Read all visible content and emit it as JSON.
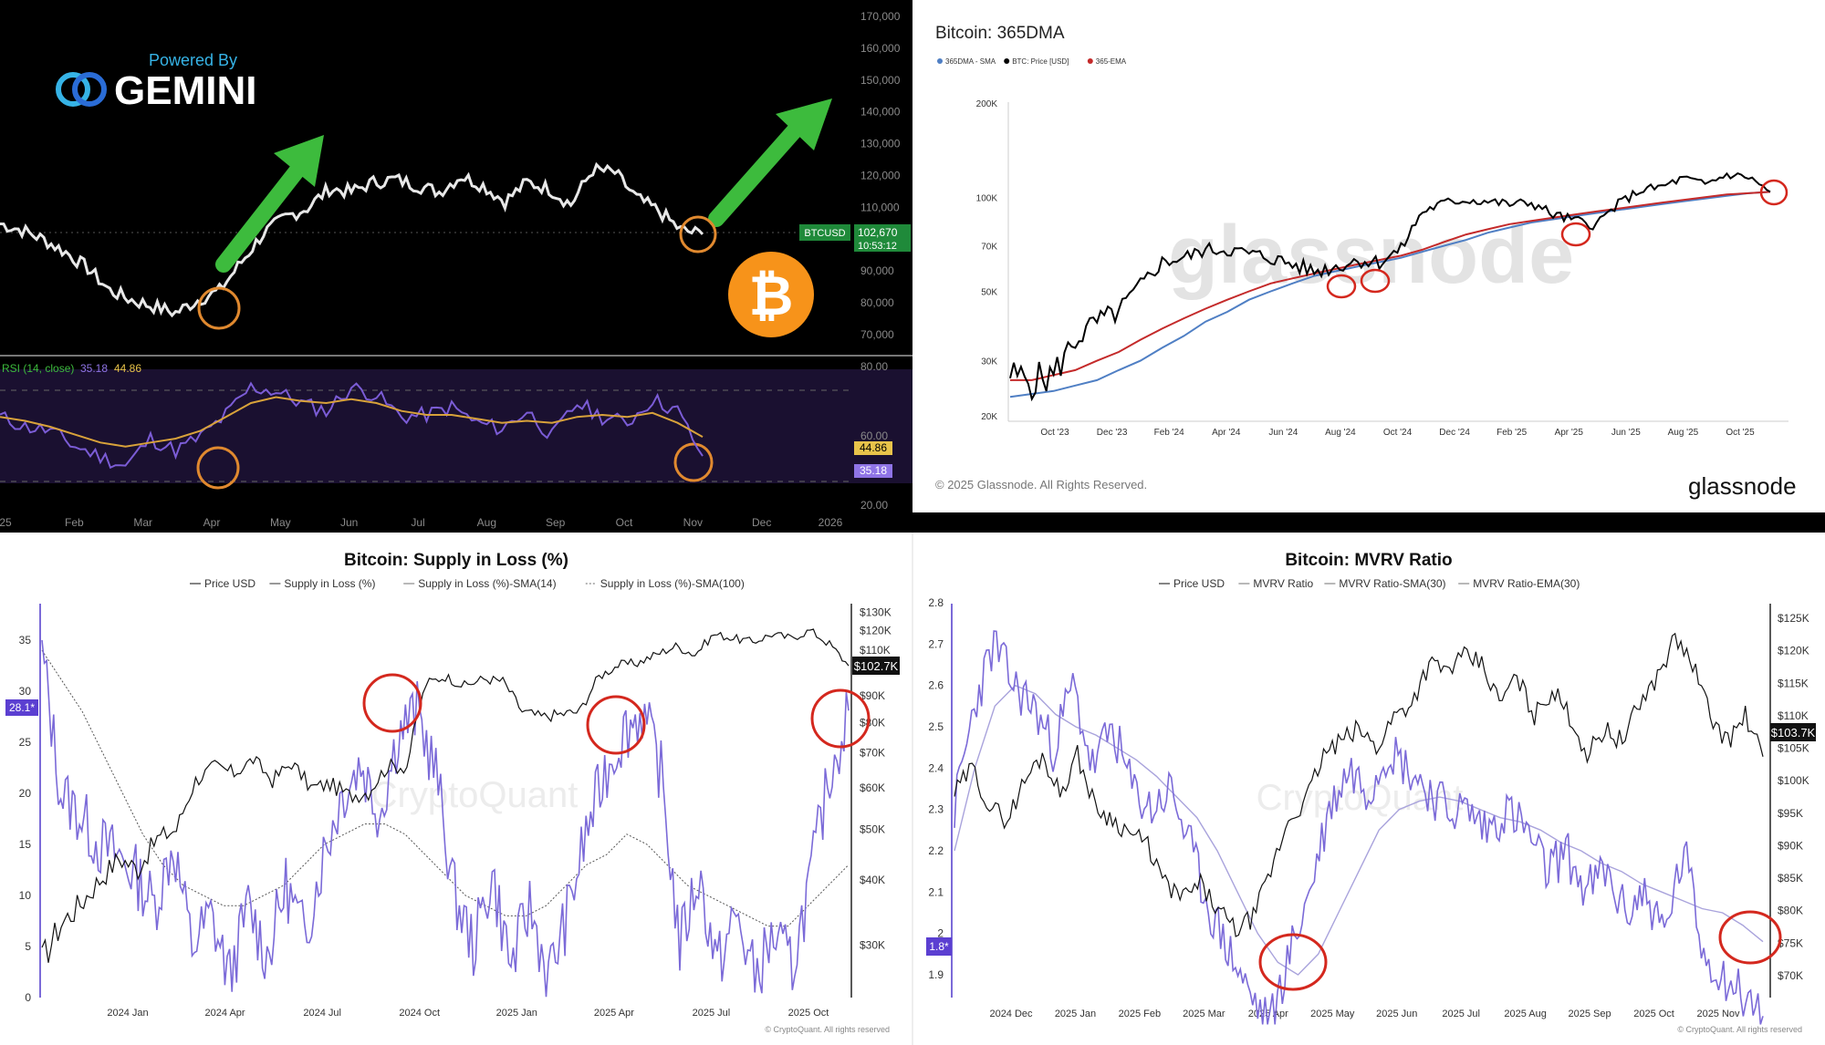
{
  "panels": {
    "gemini": {
      "powered_by": "Powered By",
      "brand": "GEMINI",
      "colors": {
        "bg": "#000000",
        "up": "#ffffff",
        "axis": "#8a8a8a",
        "rsi": "#7b5cd6",
        "rsi_ma": "#d8a23a",
        "arrow": "#3dbb3d",
        "circle": "#e0892f",
        "btc_coin": "#f7931a",
        "price_tag": "#1f8a3a"
      },
      "price_axis": [
        "170,000",
        "160,000",
        "150,000",
        "140,000",
        "130,000",
        "120,000",
        "110,000",
        "100,000",
        "90,000",
        "80,000",
        "70,000"
      ],
      "price_tag_symbol": "BTCUSD",
      "price_tag_value": "102,670",
      "price_tag_time": "10:53:12",
      "rsi_label": "RSI (14, close)",
      "rsi_value": "35.18",
      "rsi_ma_value": "44.86",
      "rsi_axis": [
        "80.00",
        "60.00",
        "20.00"
      ],
      "rsi_tag_ma": "44.86",
      "rsi_tag_rsi": "35.18",
      "time_axis": [
        "25",
        "Feb",
        "Mar",
        "Apr",
        "May",
        "Jun",
        "Jul",
        "Aug",
        "Sep",
        "Oct",
        "Nov",
        "Dec",
        "2026"
      ],
      "coin_icon": "bitcoin-coin-icon"
    },
    "glassnode": {
      "title": "Bitcoin: 365DMA",
      "legend": [
        {
          "name": "365DMA - SMA",
          "color": "#4f7fc4"
        },
        {
          "name": "BTC: Price [USD]",
          "color": "#000000"
        },
        {
          "name": "365-EMA",
          "color": "#c42a2a"
        }
      ],
      "y_axis": [
        "200K",
        "100K",
        "70K",
        "50K",
        "30K",
        "20K"
      ],
      "x_axis": [
        "Oct '23",
        "Dec '23",
        "Feb '24",
        "Apr '24",
        "Jun '24",
        "Aug '24",
        "Oct '24",
        "Dec '24",
        "Feb '25",
        "Apr '25",
        "Jun '25",
        "Aug '25",
        "Oct '25"
      ],
      "watermark": "glassnode",
      "copyright": "© 2025 Glassnode. All Rights Reserved.",
      "logo": "glassnode"
    },
    "supply_loss": {
      "title": "Bitcoin: Supply in Loss (%)",
      "legend": [
        "Price USD",
        "Supply in Loss (%)",
        "Supply in Loss (%)-SMA(14)",
        "Supply in Loss (%)-SMA(100)"
      ],
      "left_axis": [
        "35",
        "30",
        "25",
        "20",
        "15",
        "10",
        "5",
        "0"
      ],
      "left_tag": "28.1*",
      "right_axis": [
        "$130K",
        "$120K",
        "$110K",
        "$90K",
        "$80K",
        "$70K",
        "$60K",
        "$50K",
        "$40K",
        "$30K"
      ],
      "right_tag": "$102.7K",
      "x_axis": [
        "2024 Jan",
        "2024 Apr",
        "2024 Jul",
        "2024 Oct",
        "2025 Jan",
        "2025 Apr",
        "2025 Jul",
        "2025 Oct"
      ],
      "watermark": "CryptoQuant",
      "footer": "© CryptoQuant. All rights reserved"
    },
    "mvrv": {
      "title": "Bitcoin: MVRV Ratio",
      "legend": [
        "Price USD",
        "MVRV Ratio",
        "MVRV Ratio-SMA(30)",
        "MVRV Ratio-EMA(30)"
      ],
      "left_axis": [
        "2.8",
        "2.7",
        "2.6",
        "2.5",
        "2.4",
        "2.3",
        "2.2",
        "2.1",
        "2",
        "1.9"
      ],
      "left_tag": "1.8*",
      "right_axis": [
        "$125K",
        "$120K",
        "$115K",
        "$110K",
        "$105K",
        "$100K",
        "$95K",
        "$90K",
        "$85K",
        "$80K",
        "$75K",
        "$70K"
      ],
      "right_tag": "$103.7K",
      "x_axis": [
        "2024 Dec",
        "2025 Jan",
        "2025 Feb",
        "2025 Mar",
        "2025 Apr",
        "2025 May",
        "2025 Jun",
        "2025 Jul",
        "2025 Aug",
        "2025 Sep",
        "2025 Oct",
        "2025 Nov"
      ],
      "watermark": "CryptoQuant",
      "footer": "© CryptoQuant. All rights reserved"
    }
  },
  "chart_data": [
    {
      "type": "line",
      "panel": "gemini",
      "series": [
        {
          "values": [
            106,
            104,
            101,
            97,
            92,
            85,
            82,
            80,
            78,
            82,
            85,
            94,
            103,
            108,
            111,
            117,
            116,
            119,
            120,
            118,
            116,
            121,
            118,
            113,
            119,
            117,
            112,
            123,
            122,
            114,
            110,
            104,
            102.7
          ]
        }
      ],
      "ylim": [
        70000,
        170000
      ],
      "note_series_units": "thousands USD"
    },
    {
      "type": "line",
      "panel": "gemini-rsi",
      "series": [
        {
          "values": [
            55,
            50,
            48,
            40,
            35,
            30,
            44,
            38,
            45,
            56,
            70,
            68,
            62,
            58,
            70,
            66,
            55,
            56,
            60,
            52,
            49,
            58,
            45,
            62,
            55,
            52,
            64,
            58,
            35.18
          ]
        },
        {
          "values": [
            55,
            53,
            50,
            46,
            42,
            40,
            42,
            44,
            48,
            55,
            62,
            65,
            63,
            62,
            64,
            62,
            58,
            56,
            56,
            54,
            52,
            53,
            52,
            55,
            56,
            55,
            57,
            52,
            44.86
          ]
        }
      ]
    },
    {
      "type": "line",
      "panel": "glassnode",
      "y_scale": "log",
      "ylim": [
        20000,
        200000
      ],
      "series": [
        {
          "name": "BTC: Price [USD]",
          "values": [
            27,
            26,
            27,
            35,
            40,
            43,
            52,
            62,
            64,
            68,
            68,
            66,
            64,
            61,
            58,
            60,
            63,
            62,
            68,
            90,
            96,
            98,
            97,
            95,
            96,
            88,
            84,
            82,
            95,
            105,
            108,
            115,
            110,
            118,
            116,
            104
          ]
        },
        {
          "name": "365DMA - SMA",
          "values": [
            23,
            23.5,
            24,
            25,
            26,
            28,
            30,
            33,
            36,
            40,
            43,
            47,
            50,
            53,
            56,
            58,
            60,
            62,
            64,
            67,
            70,
            73,
            77,
            80,
            83,
            85,
            87,
            89,
            91,
            93,
            95,
            97,
            99,
            101,
            103,
            104
          ]
        },
        {
          "name": "365-EMA",
          "values": [
            26,
            26,
            27,
            28,
            30,
            32,
            35,
            38,
            41,
            44,
            47,
            50,
            53,
            55,
            57,
            59,
            61,
            63,
            65,
            68,
            72,
            76,
            79,
            82,
            84,
            86,
            88,
            90,
            92,
            94,
            96,
            98,
            100,
            102,
            103,
            104
          ]
        }
      ]
    },
    {
      "type": "line",
      "panel": "supply_loss",
      "series": [
        {
          "name": "Price USD",
          "values": [
            28,
            33,
            36,
            40,
            44,
            42,
            48,
            50,
            62,
            66,
            64,
            68,
            62,
            67,
            60,
            61,
            58,
            59,
            66,
            66,
            95,
            98,
            94,
            97,
            96,
            84,
            82,
            83,
            84,
            98,
            103,
            104,
            108,
            112,
            108,
            118,
            116,
            114,
            118,
            116,
            120,
            113,
            102.7
          ]
        },
        {
          "name": "Supply in Loss (%)",
          "values": [
            34,
            20,
            18,
            15,
            14,
            12,
            9,
            15,
            5,
            8,
            2,
            9,
            4,
            11,
            6,
            14,
            20,
            23,
            18,
            26,
            28,
            22,
            10,
            5,
            12,
            3,
            9,
            2,
            8,
            16,
            22,
            26,
            28,
            22,
            5,
            12,
            3,
            8,
            2,
            6,
            3,
            12,
            22,
            28.1
          ]
        },
        {
          "name": "Supply in Loss (%)-SMA(100)",
          "values": [
            34,
            31,
            28,
            24,
            20,
            16,
            13,
            11,
            10,
            9,
            9,
            10,
            11,
            13,
            15,
            16,
            17,
            17,
            16,
            14,
            12,
            10,
            9,
            8,
            8,
            9,
            11,
            13,
            14,
            16,
            15,
            13,
            11,
            10,
            9,
            8,
            7,
            7,
            9,
            11,
            13
          ]
        }
      ]
    },
    {
      "type": "line",
      "panel": "mvrv",
      "series": [
        {
          "name": "Price USD",
          "values": [
            98,
            102,
            96,
            94,
            100,
            104,
            98,
            104,
            96,
            94,
            92,
            90,
            84,
            82,
            84,
            80,
            77,
            79,
            86,
            94,
            97,
            104,
            106,
            108,
            105,
            110,
            112,
            118,
            117,
            119,
            118,
            112,
            116,
            110,
            114,
            110,
            104,
            108,
            106,
            112,
            116,
            122,
            118,
            110,
            106,
            110,
            103.7
          ]
        },
        {
          "name": "MVRV Ratio",
          "values": [
            2.3,
            2.55,
            2.7,
            2.6,
            2.55,
            2.45,
            2.6,
            2.4,
            2.5,
            2.35,
            2.3,
            2.35,
            2.2,
            2.05,
            1.95,
            1.85,
            1.78,
            1.95,
            2.1,
            2.3,
            2.4,
            2.35,
            2.45,
            2.4,
            2.35,
            2.3,
            2.3,
            2.25,
            2.3,
            2.25,
            2.15,
            2.2,
            2.1,
            2.15,
            2.05,
            2.1,
            2.0,
            2.2,
            1.95,
            1.9,
            1.85,
            1.8
          ]
        },
        {
          "name": "MVRV Ratio-SMA(30)",
          "values": [
            2.2,
            2.4,
            2.55,
            2.6,
            2.58,
            2.53,
            2.5,
            2.48,
            2.45,
            2.42,
            2.38,
            2.33,
            2.28,
            2.2,
            2.1,
            2.0,
            1.93,
            1.9,
            1.95,
            2.05,
            2.15,
            2.25,
            2.3,
            2.32,
            2.33,
            2.32,
            2.3,
            2.28,
            2.27,
            2.25,
            2.22,
            2.2,
            2.17,
            2.15,
            2.12,
            2.1,
            2.08,
            2.06,
            2.05,
            2.02,
            1.98
          ]
        }
      ]
    }
  ]
}
